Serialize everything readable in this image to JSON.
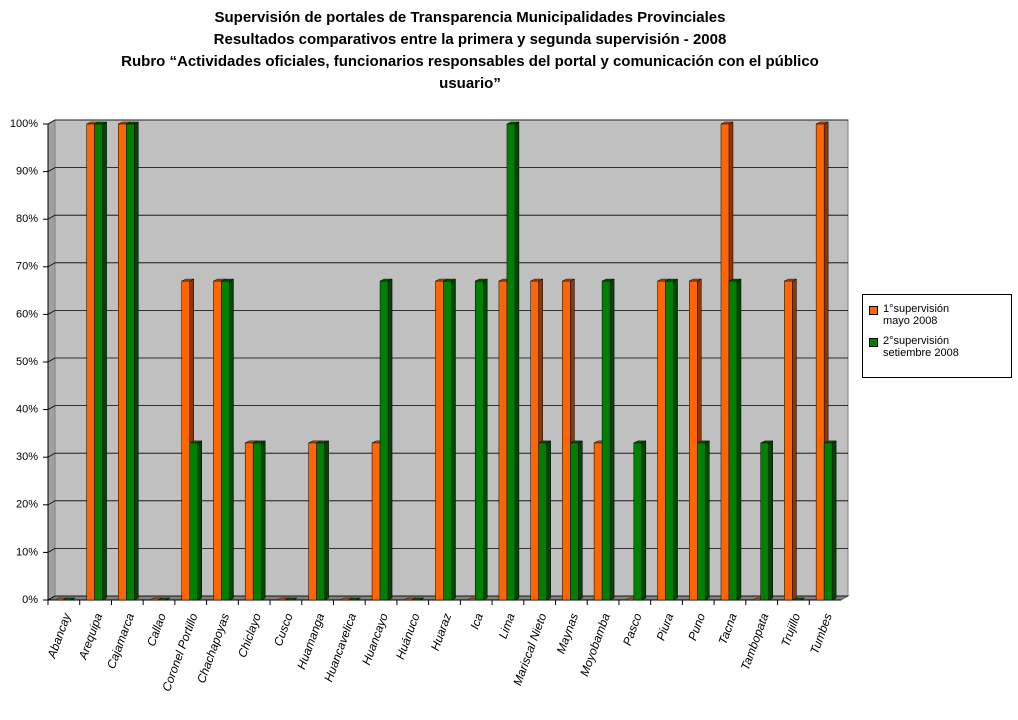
{
  "chart_data": {
    "type": "bar",
    "title": [
      "Supervisión de portales de Transparencia  Municipalidades Provinciales",
      "Resultados comparativos entre la primera y segunda supervisión - 2008",
      "Rubro “Actividades oficiales, funcionarios responsables del portal y comunicación con el público",
      "usuario”"
    ],
    "categories": [
      "Abancay",
      "Arequipa",
      "Cajamarca",
      "Callao",
      "Coronel Portillo",
      "Chachapoyas",
      "Chiclayo",
      "Cusco",
      "Huamanga",
      "Huancavelica",
      "Huancayo",
      "Huánuco",
      "Huaraz",
      "Ica",
      "Lima",
      "Mariscal Nieto",
      "Maynas",
      "Moyobamba",
      "Pasco",
      "Piura",
      "Puno",
      "Tacna",
      "Tambopata",
      "Trujillo",
      "Tumbes"
    ],
    "series": [
      {
        "name": "1°supervisión mayo 2008",
        "color": "#ff6600",
        "values": [
          0,
          100,
          100,
          0,
          67,
          67,
          33,
          0,
          33,
          0,
          33,
          0,
          67,
          0,
          67,
          67,
          67,
          33,
          0,
          67,
          67,
          100,
          0,
          67,
          100
        ]
      },
      {
        "name": "2°supervisión setiembre 2008",
        "color": "#008000",
        "values": [
          0,
          100,
          100,
          0,
          33,
          67,
          33,
          0,
          33,
          0,
          67,
          0,
          67,
          67,
          100,
          33,
          33,
          67,
          33,
          67,
          33,
          67,
          33,
          0,
          33
        ]
      }
    ],
    "ylim": [
      0,
      100
    ],
    "yticks": [
      {
        "value": 0,
        "label": "0%"
      },
      {
        "value": 10,
        "label": "10%"
      },
      {
        "value": 20,
        "label": "20%"
      },
      {
        "value": 30,
        "label": "30%"
      },
      {
        "value": 40,
        "label": "40%"
      },
      {
        "value": 50,
        "label": "50%"
      },
      {
        "value": 60,
        "label": "60%"
      },
      {
        "value": 70,
        "label": "70%"
      },
      {
        "value": 80,
        "label": "80%"
      },
      {
        "value": 90,
        "label": "90%"
      },
      {
        "value": 100,
        "label": "100%"
      }
    ],
    "grid": true,
    "legend": "right"
  }
}
